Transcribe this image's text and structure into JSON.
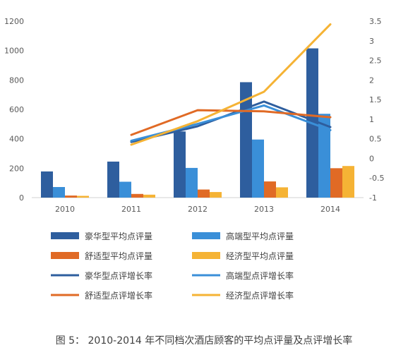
{
  "caption": "图 5： 2010-2014 年不同档次酒店顾客的平均点评量及点评增长率",
  "chart_data": {
    "type": "bar",
    "title": "",
    "categories": [
      "2010",
      "2011",
      "2012",
      "2013",
      "2014"
    ],
    "y_left": {
      "range": [
        0,
        1200
      ],
      "ticks": [
        "0",
        "200",
        "400",
        "600",
        "800",
        "1000",
        "1200"
      ]
    },
    "y_right": {
      "range": [
        -1,
        3.5
      ],
      "ticks": [
        "-1",
        "-0.5",
        "0",
        "0.5",
        "1",
        "1.5",
        "2",
        "2.5",
        "3",
        "3.5"
      ]
    },
    "grid": false,
    "legend_position": "bottom",
    "bar_series": [
      {
        "name": "豪华型平均点评量",
        "color": "#2E5E9E",
        "values": [
          178,
          245,
          450,
          785,
          1015
        ]
      },
      {
        "name": "高端型平均点评量",
        "color": "#3A8FD8",
        "values": [
          72,
          108,
          202,
          395,
          570
        ]
      },
      {
        "name": "舒适型平均点评量",
        "color": "#E06A25",
        "values": [
          14,
          25,
          55,
          110,
          200
        ]
      },
      {
        "name": "经济型平均点评量",
        "color": "#F5B335",
        "values": [
          12,
          20,
          38,
          70,
          215
        ]
      }
    ],
    "line_series": [
      {
        "name": "豪华型点评增长率",
        "color": "#2E5E9E",
        "values": [
          null,
          0.42,
          0.82,
          1.45,
          0.8
        ]
      },
      {
        "name": "高端型点评增长率",
        "color": "#3A8FD8",
        "values": [
          null,
          0.45,
          0.88,
          1.35,
          0.72
        ]
      },
      {
        "name": "舒适型点评增长率",
        "color": "#E06A25",
        "values": [
          null,
          0.6,
          1.23,
          1.2,
          1.05
        ]
      },
      {
        "name": "经济型点评增长率",
        "color": "#F5B335",
        "values": [
          null,
          0.35,
          0.95,
          1.7,
          3.42
        ]
      }
    ]
  }
}
